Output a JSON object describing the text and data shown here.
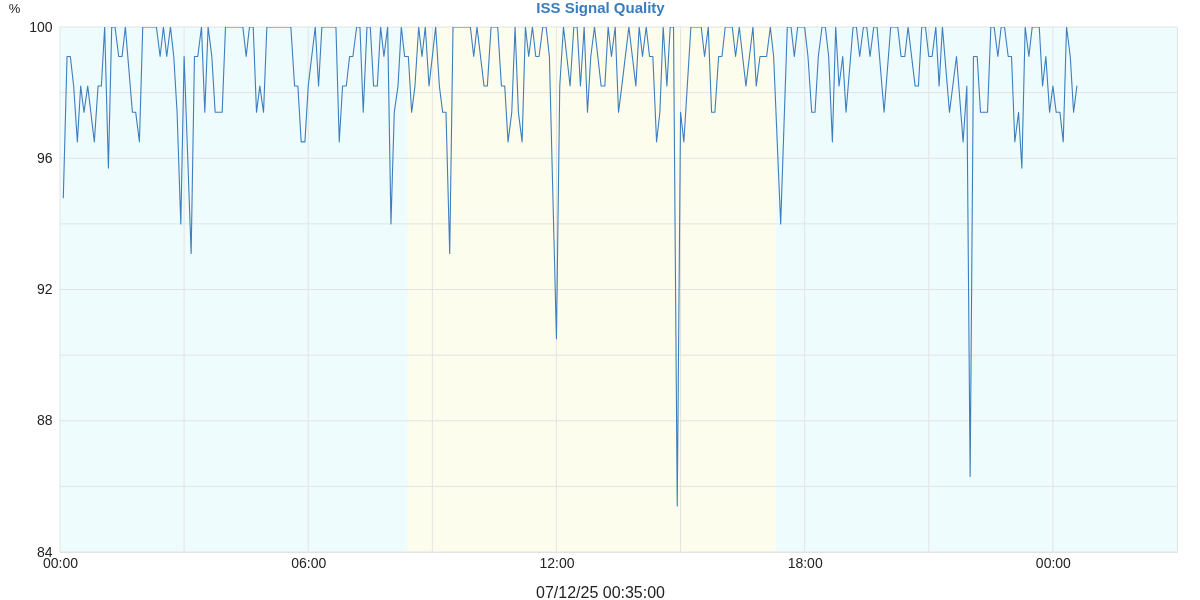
{
  "chart_data": {
    "type": "line",
    "title": "ISS Signal Quality",
    "xlabel": "07/12/25 00:35:00",
    "ylabel": "%",
    "x": [
      0.08,
      0.17,
      0.25,
      0.33,
      0.42,
      0.5,
      0.58,
      0.67,
      0.83,
      0.92,
      1,
      1.08,
      1.17,
      1.25,
      1.33,
      1.42,
      1.5,
      1.58,
      1.75,
      1.83,
      1.92,
      2,
      2.17,
      2.25,
      2.33,
      2.42,
      2.5,
      2.58,
      2.67,
      2.75,
      2.83,
      2.92,
      3,
      3.17,
      3.25,
      3.33,
      3.42,
      3.5,
      3.58,
      3.67,
      3.75,
      3.92,
      4,
      4.42,
      4.5,
      4.58,
      4.67,
      4.75,
      4.83,
      4.92,
      5,
      5.58,
      5.67,
      5.75,
      5.83,
      5.92,
      6,
      6.17,
      6.25,
      6.33,
      6.67,
      6.75,
      6.83,
      6.92,
      7,
      7.08,
      7.17,
      7.25,
      7.33,
      7.42,
      7.5,
      7.58,
      7.67,
      7.75,
      7.83,
      7.92,
      8,
      8.08,
      8.17,
      8.25,
      8.33,
      8.42,
      8.5,
      8.58,
      8.67,
      8.75,
      8.83,
      8.92,
      9,
      9.08,
      9.17,
      9.25,
      9.33,
      9.42,
      9.5,
      9.92,
      10,
      10.08,
      10.25,
      10.33,
      10.42,
      10.58,
      10.67,
      10.75,
      10.83,
      10.92,
      11,
      11.08,
      11.17,
      11.25,
      11.33,
      11.42,
      11.5,
      11.58,
      11.67,
      11.75,
      11.83,
      12,
      12.08,
      12.17,
      12.33,
      12.42,
      12.5,
      12.58,
      12.67,
      12.75,
      12.83,
      12.92,
      13.08,
      13.17,
      13.25,
      13.33,
      13.42,
      13.5,
      13.58,
      13.75,
      13.92,
      14,
      14.08,
      14.17,
      14.25,
      14.33,
      14.42,
      14.5,
      14.58,
      14.67,
      14.75,
      14.83,
      14.92,
      15,
      15.08,
      15.25,
      15.5,
      15.58,
      15.67,
      15.75,
      15.83,
      15.92,
      16,
      16.08,
      16.25,
      16.33,
      16.42,
      16.58,
      16.75,
      16.83,
      16.92,
      17.08,
      17.17,
      17.25,
      17.42,
      17.58,
      17.67,
      17.75,
      17.83,
      18,
      18.08,
      18.17,
      18.25,
      18.33,
      18.42,
      18.5,
      18.58,
      18.67,
      18.75,
      18.83,
      18.92,
      19,
      19.17,
      19.25,
      19.33,
      19.42,
      19.5,
      19.58,
      19.67,
      19.75,
      19.92,
      20.08,
      20.25,
      20.33,
      20.42,
      20.5,
      20.67,
      20.75,
      20.83,
      20.92,
      21,
      21.08,
      21.17,
      21.25,
      21.33,
      21.5,
      21.67,
      21.83,
      21.92,
      22,
      22.08,
      22.17,
      22.25,
      22.42,
      22.5,
      22.58,
      22.67,
      22.75,
      22.83,
      22.92,
      23,
      23.08,
      23.17,
      23.25,
      23.33,
      23.42,
      23.5,
      23.67,
      23.75,
      23.83,
      23.92,
      24,
      24.08,
      24.17,
      24.25,
      24.33,
      24.42,
      24.5,
      24.58
    ],
    "series": [
      {
        "color": "#3d7ebf",
        "values": [
          94.8,
          99.1,
          99.1,
          98.2,
          96.5,
          98.2,
          97.4,
          98.2,
          96.5,
          98.2,
          98.2,
          100,
          95.7,
          100,
          100,
          99.1,
          99.1,
          100,
          97.4,
          97.4,
          96.5,
          100,
          100,
          100,
          100,
          99.1,
          100,
          99.1,
          100,
          99.1,
          97.4,
          94,
          99.1,
          93.1,
          99.1,
          99.1,
          100,
          97.4,
          100,
          99.1,
          97.4,
          97.4,
          100,
          100,
          99.1,
          100,
          100,
          97.4,
          98.2,
          97.4,
          100,
          100,
          98.2,
          98.2,
          96.5,
          96.5,
          98.2,
          100,
          98.2,
          100,
          100,
          96.5,
          98.2,
          98.2,
          99.1,
          99.1,
          100,
          100,
          97.4,
          100,
          100,
          98.2,
          98.2,
          100,
          99.1,
          100,
          94,
          97.4,
          98.2,
          100,
          99.1,
          99.1,
          97.4,
          98.2,
          100,
          99.1,
          100,
          98.2,
          99.1,
          100,
          98.2,
          97.4,
          97.4,
          93.1,
          100,
          100,
          99.1,
          100,
          98.2,
          98.2,
          100,
          100,
          98.2,
          98.2,
          96.5,
          97.4,
          100,
          97.4,
          96.5,
          100,
          99.1,
          100,
          99.1,
          99.1,
          100,
          100,
          99.1,
          90.5,
          98.2,
          100,
          98.2,
          100,
          100,
          98.2,
          100,
          97.4,
          99.1,
          100,
          98.2,
          98.2,
          100,
          99.1,
          100,
          97.4,
          98.2,
          100,
          98.2,
          100,
          99.1,
          100,
          99.1,
          99.1,
          96.5,
          97.4,
          100,
          98.2,
          100,
          100,
          85.4,
          97.4,
          96.5,
          100,
          100,
          99.1,
          100,
          97.4,
          97.4,
          99.1,
          99.1,
          100,
          100,
          99.1,
          100,
          98.2,
          100,
          98.2,
          99.1,
          99.1,
          100,
          99.1,
          94,
          100,
          100,
          99.1,
          100,
          100,
          99.1,
          97.4,
          97.4,
          99.1,
          100,
          100,
          99.1,
          96.5,
          100,
          98.2,
          99.1,
          97.4,
          100,
          100,
          99.1,
          100,
          100,
          99.1,
          100,
          100,
          97.4,
          100,
          100,
          99.1,
          99.1,
          100,
          98.2,
          98.2,
          100,
          100,
          99.1,
          99.1,
          100,
          98.2,
          100,
          97.4,
          99.1,
          96.5,
          98.2,
          86.3,
          99.1,
          99.1,
          97.4,
          97.4,
          100,
          100,
          99.1,
          100,
          100,
          99.1,
          99.1,
          96.5,
          97.4,
          95.7,
          100,
          99.1,
          100,
          100,
          98.2,
          99.1,
          97.4,
          98.2,
          97.4,
          97.4,
          96.5,
          100,
          99.1,
          97.4,
          98.2
        ]
      }
    ],
    "xlim": [
      0,
      27
    ],
    "xticks": [
      {
        "value": 0,
        "label": "00:00"
      },
      {
        "value": 3,
        "label": null
      },
      {
        "value": 6,
        "label": "06:00"
      },
      {
        "value": 9,
        "label": null
      },
      {
        "value": 12,
        "label": "12:00"
      },
      {
        "value": 15,
        "label": null
      },
      {
        "value": 18,
        "label": "18:00"
      },
      {
        "value": 21,
        "label": null
      },
      {
        "value": 24,
        "label": "00:00"
      }
    ],
    "ylim": [
      84,
      100
    ],
    "yticks": [
      84,
      {
        "value": 86,
        "label": null
      },
      88,
      {
        "value": 90,
        "label": null
      },
      92,
      {
        "value": 94,
        "label": null
      },
      96,
      {
        "value": 98,
        "label": null
      },
      100
    ],
    "grid": true,
    "bands": [
      {
        "axis": "x",
        "from": 0,
        "to": 27,
        "color": "#effcfd"
      },
      {
        "axis": "x",
        "from": 8.4,
        "to": 17.3,
        "color": "#fdfdee"
      }
    ]
  }
}
